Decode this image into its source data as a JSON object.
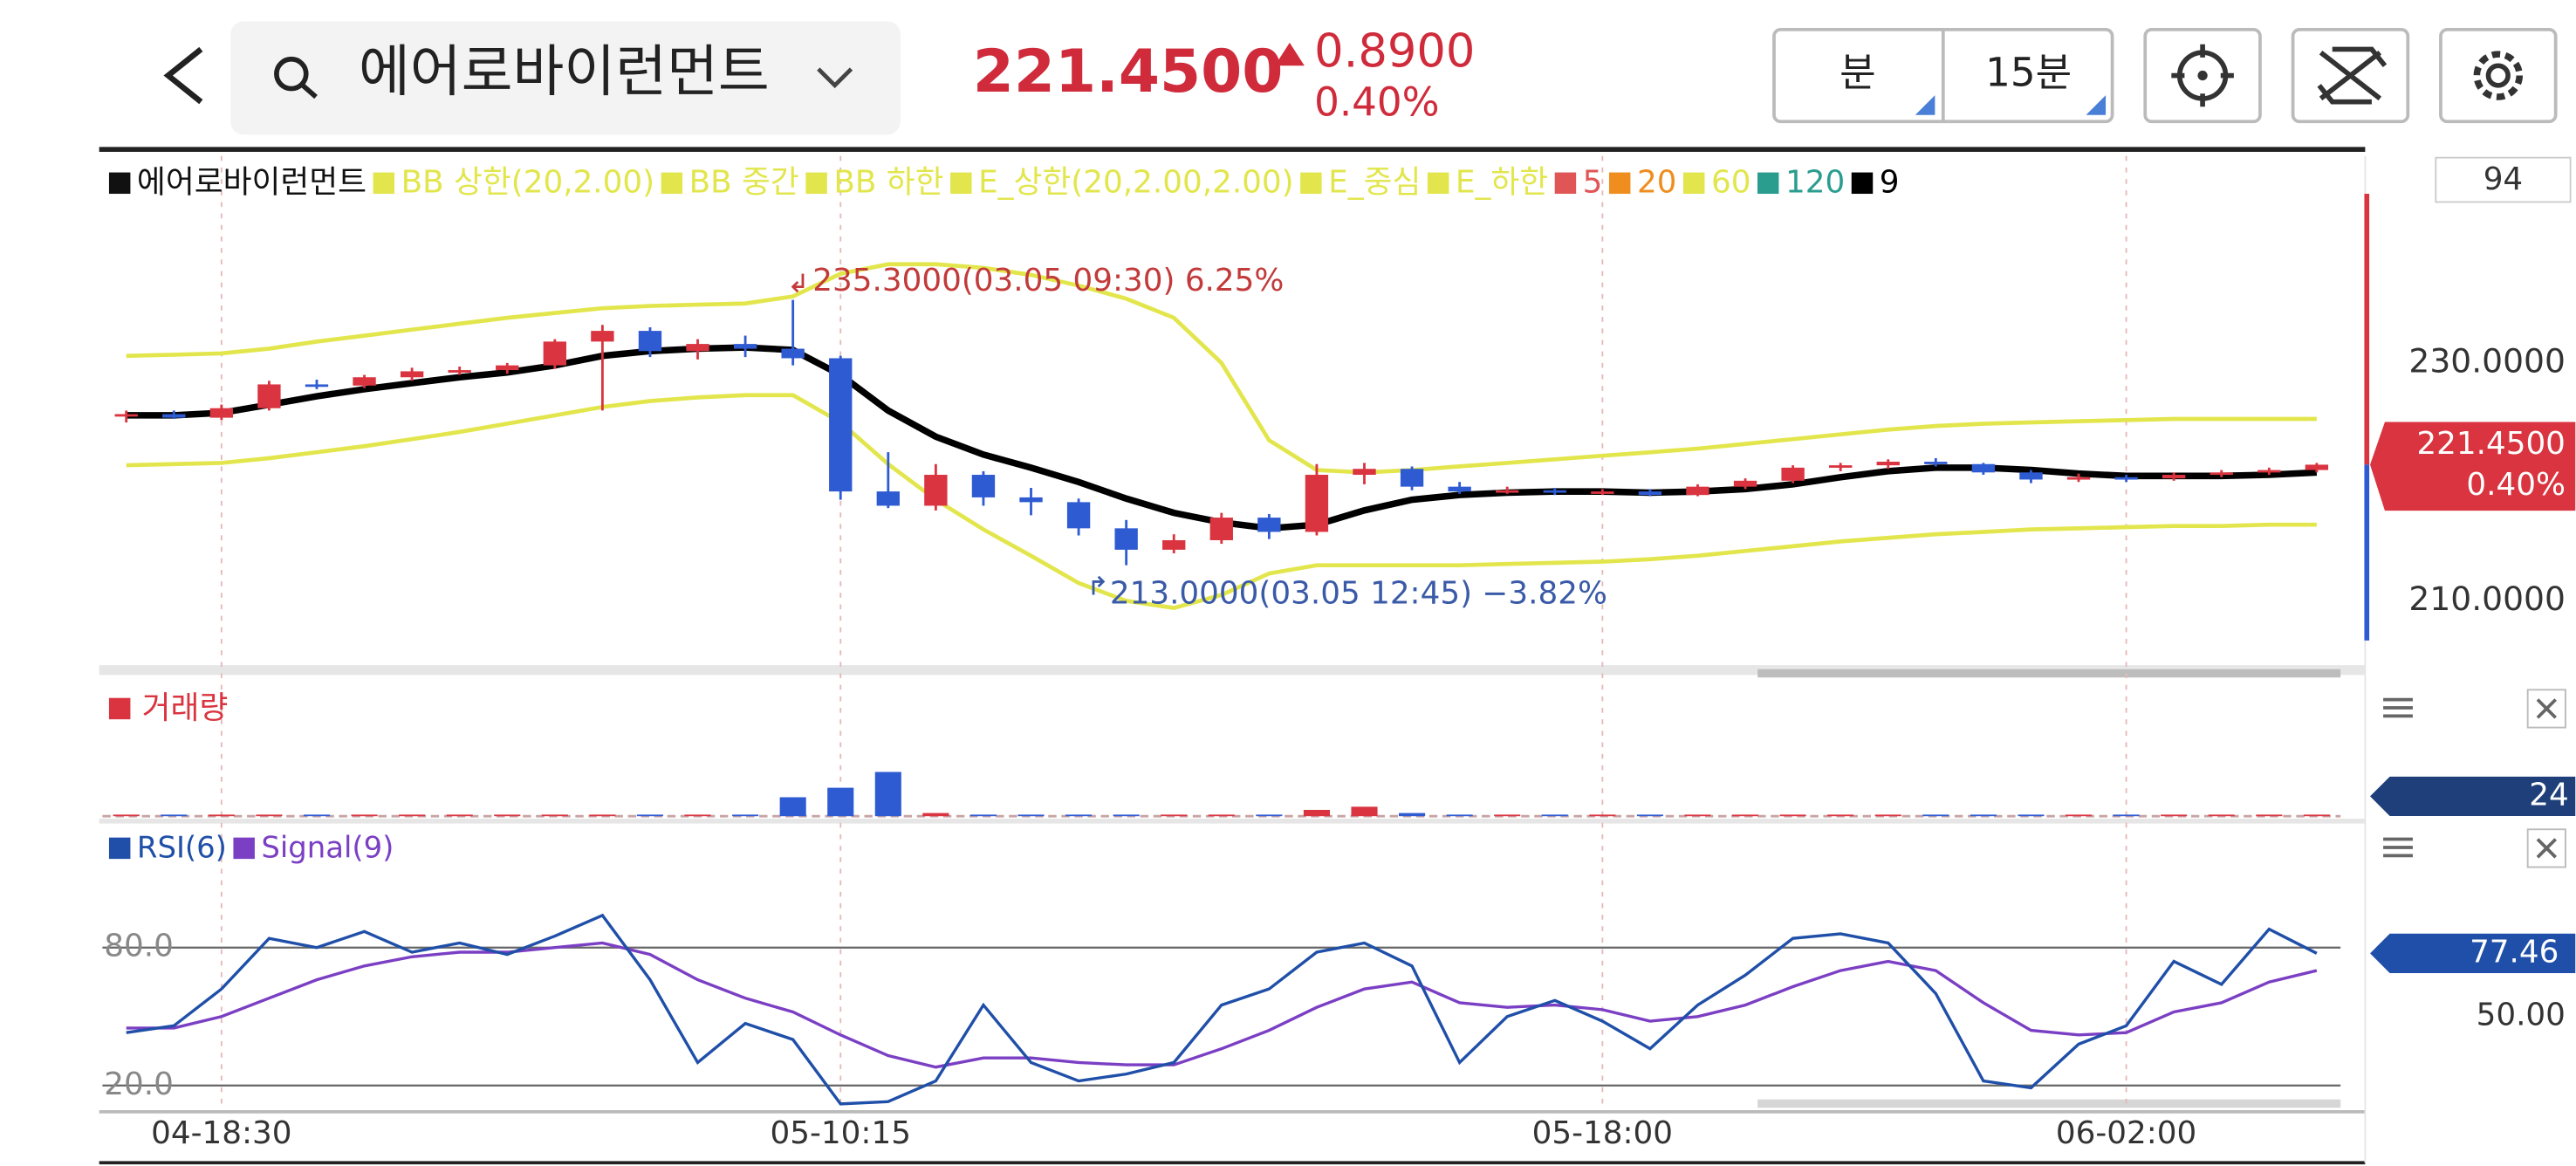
{
  "header": {
    "name": "에어로바이런먼트",
    "price": "221.4500",
    "change": "0.8900",
    "change_pct": "0.40%",
    "unit_button": "분",
    "interval_button": "15분"
  },
  "chart_data": [
    {
      "type": "candlestick",
      "top_box": "94",
      "up_color": "#d9343f",
      "down_color": "#2f5bd2",
      "categories": [
        null,
        null,
        "04-18:30",
        null,
        null,
        null,
        null,
        null,
        null,
        null,
        null,
        null,
        null,
        null,
        null,
        "05-10:15",
        null,
        null,
        null,
        null,
        null,
        null,
        null,
        null,
        null,
        null,
        null,
        null,
        null,
        null,
        null,
        "05-18:00",
        null,
        null,
        null,
        null,
        null,
        null,
        null,
        null,
        null,
        null,
        "06-02:00",
        null,
        null,
        null,
        null
      ],
      "open": [
        225.5,
        225.7,
        225.4,
        226.2,
        228.2,
        228.1,
        228.8,
        229.3,
        229.4,
        229.8,
        231.8,
        232.7,
        231,
        231.6,
        231.2,
        230.4,
        219.2,
        218,
        220.6,
        218.7,
        218.3,
        216.1,
        214.3,
        215.1,
        217,
        215.8,
        220.6,
        221.1,
        219.6,
        219.2,
        219.3,
        219.1,
        219.2,
        218.9,
        219.6,
        220.1,
        221.2,
        221.4,
        221.7,
        221.5,
        220.8,
        220.2,
        220.4,
        220.3,
        220.6,
        220.8,
        221
      ],
      "high": [
        226,
        226,
        226.5,
        228.5,
        228.6,
        229,
        229.6,
        229.7,
        230,
        232,
        233.2,
        233,
        232,
        232.3,
        235.3,
        230.6,
        222.5,
        221.5,
        220.9,
        219.5,
        218.6,
        216.8,
        215.6,
        217.4,
        217.3,
        221.5,
        221.6,
        221.3,
        220,
        219.6,
        219.5,
        219.4,
        219.4,
        219.8,
        220.3,
        221.4,
        221.6,
        221.9,
        222,
        221.6,
        221,
        220.7,
        220.6,
        220.8,
        221,
        221.2,
        221.6
      ],
      "low": [
        225,
        225.3,
        225.2,
        226,
        227.8,
        227.9,
        228.5,
        229,
        229.1,
        229.5,
        226,
        230.5,
        230.3,
        230.5,
        229.8,
        218.5,
        217.8,
        217.6,
        218,
        217.2,
        215.5,
        213,
        214,
        214.8,
        215.2,
        215.5,
        219.8,
        219.3,
        219,
        219,
        218.9,
        218.9,
        218.8,
        218.8,
        219.4,
        219.9,
        220.9,
        221.1,
        221.3,
        220.6,
        219.9,
        220,
        220,
        220.1,
        220.4,
        220.6,
        220.8
      ],
      "close": [
        225.7,
        225.4,
        226.2,
        228.2,
        228.1,
        228.8,
        229.3,
        229.4,
        229.8,
        231.8,
        232.7,
        231,
        231.6,
        231.2,
        230.4,
        219.2,
        218,
        220.6,
        218.7,
        218.3,
        216.1,
        214.3,
        215.1,
        217,
        215.8,
        220.6,
        221.1,
        219.6,
        219.2,
        219.3,
        219.1,
        219.2,
        218.9,
        219.6,
        220.1,
        221.2,
        221.4,
        221.7,
        221.5,
        220.8,
        220.2,
        220.4,
        220.3,
        220.6,
        220.8,
        221,
        221.45
      ],
      "series": [
        {
          "name": "에어로바이런먼트",
          "color": "#111111"
        },
        {
          "name": "BB 상한(20,2.00)",
          "color": "#e2e64c",
          "values": [
            230.6,
            230.7,
            230.8,
            231.2,
            231.8,
            232.3,
            232.8,
            233.3,
            233.8,
            234.2,
            234.6,
            234.8,
            234.9,
            235,
            235.6,
            237.5,
            238.3,
            238.3,
            238,
            237.4,
            236.5,
            235.4,
            233.8,
            230,
            223.5,
            221,
            220.8,
            221,
            221.3,
            221.6,
            221.9,
            222.2,
            222.5,
            222.8,
            223.2,
            223.6,
            224,
            224.4,
            224.7,
            224.9,
            225,
            225.1,
            225.2,
            225.3,
            225.3,
            225.3,
            225.3
          ]
        },
        {
          "name": "BB 중간",
          "color": "#e2e64c"
        },
        {
          "name": "BB 하한",
          "color": "#e2e64c",
          "values": [
            221.4,
            221.5,
            221.6,
            222,
            222.5,
            223,
            223.6,
            224.2,
            224.9,
            225.6,
            226.3,
            226.8,
            227.1,
            227.3,
            227.3,
            225,
            221.5,
            218.5,
            216,
            213.8,
            211.5,
            210,
            209.4,
            210.5,
            212.3,
            213,
            213,
            213,
            213,
            213.1,
            213.2,
            213.3,
            213.5,
            213.8,
            214.2,
            214.6,
            215,
            215.3,
            215.6,
            215.8,
            216,
            216.1,
            216.2,
            216.3,
            216.3,
            216.4,
            216.4
          ]
        },
        {
          "name": "E_상한(20,2.00,2.00)",
          "color": "#e2e64c"
        },
        {
          "name": "E_중심",
          "color": "#e2e64c"
        },
        {
          "name": "E_하한",
          "color": "#e2e64c"
        },
        {
          "name": "5",
          "color": "#e05555"
        },
        {
          "name": "20",
          "color": "#ef8d1f"
        },
        {
          "name": "60",
          "color": "#e2e64c"
        },
        {
          "name": "120",
          "color": "#2a9d8f"
        },
        {
          "name": "9",
          "color": "#000000",
          "values": [
            225.6,
            225.6,
            225.8,
            226.5,
            227.2,
            227.8,
            228.3,
            228.8,
            229.2,
            229.8,
            230.6,
            231,
            231.2,
            231.3,
            231.1,
            229,
            226,
            223.8,
            222.3,
            221.2,
            220,
            218.6,
            217.4,
            216.6,
            216.1,
            216.4,
            217.6,
            218.5,
            218.9,
            219.1,
            219.2,
            219.2,
            219.1,
            219.2,
            219.4,
            219.8,
            220.4,
            220.9,
            221.2,
            221.2,
            221,
            220.7,
            220.5,
            220.5,
            220.5,
            220.6,
            220.8
          ]
        }
      ],
      "ylim": [
        204.6,
        247.4
      ],
      "yticks": [
        {
          "value": 230,
          "label": "230.0000"
        },
        {
          "value": 210,
          "label": "210.0000"
        }
      ],
      "annotations": [
        {
          "value": 235.3,
          "label": "235.3000(03.05 09:30) 6.25%"
        },
        {
          "value": 213,
          "label": "213.0000(03.05 12:45) −3.82%"
        }
      ]
    },
    {
      "type": "bar",
      "title": "거래량",
      "color": "#d9343f",
      "ylim": [
        0,
        80
      ],
      "current": 24,
      "values": [
        1,
        1,
        1,
        1,
        1,
        1,
        1,
        1,
        1,
        1,
        1,
        1,
        1,
        1,
        12,
        18,
        28,
        2,
        1,
        1,
        1,
        1,
        1,
        1,
        1,
        4,
        6,
        2,
        1,
        1,
        1,
        1,
        1,
        1,
        1,
        1,
        1,
        1,
        1,
        1,
        1,
        1,
        1,
        1,
        1,
        1,
        1
      ]
    },
    {
      "type": "line",
      "ylim": [
        10,
        131.4
      ],
      "yticks": [
        {
          "value": 80,
          "label": "80.0"
        },
        {
          "value": 20,
          "label": "20.0"
        }
      ],
      "y2lim": [
        10,
        131.4
      ],
      "y2ticks": [
        {
          "value": 50,
          "label": "50.00"
        }
      ],
      "series": [
        {
          "name": "RSI(6)",
          "color": "#1f4fa8",
          "values": [
            43,
            46,
            62,
            84,
            80,
            87,
            78,
            82,
            77,
            85,
            94,
            66,
            30,
            47,
            40,
            12,
            13,
            22,
            55,
            30,
            22,
            25,
            30,
            55,
            62,
            78,
            82,
            72,
            30,
            50,
            57,
            48,
            36,
            55,
            68,
            84,
            86,
            82,
            60,
            22,
            19,
            38,
            46,
            74,
            64,
            88,
            77.46
          ]
        },
        {
          "name": "Signal(9)",
          "color": "#7b3fc4",
          "values": [
            45,
            45,
            50,
            58,
            66,
            72,
            76,
            78,
            78,
            80,
            82,
            77,
            66,
            58,
            52,
            42,
            33,
            28,
            32,
            32,
            30,
            29,
            29,
            36,
            44,
            54,
            62,
            65,
            56,
            54,
            55,
            53,
            48,
            50,
            55,
            63,
            70,
            74,
            70,
            56,
            44,
            42,
            43,
            52,
            56,
            65,
            70
          ]
        }
      ]
    }
  ]
}
